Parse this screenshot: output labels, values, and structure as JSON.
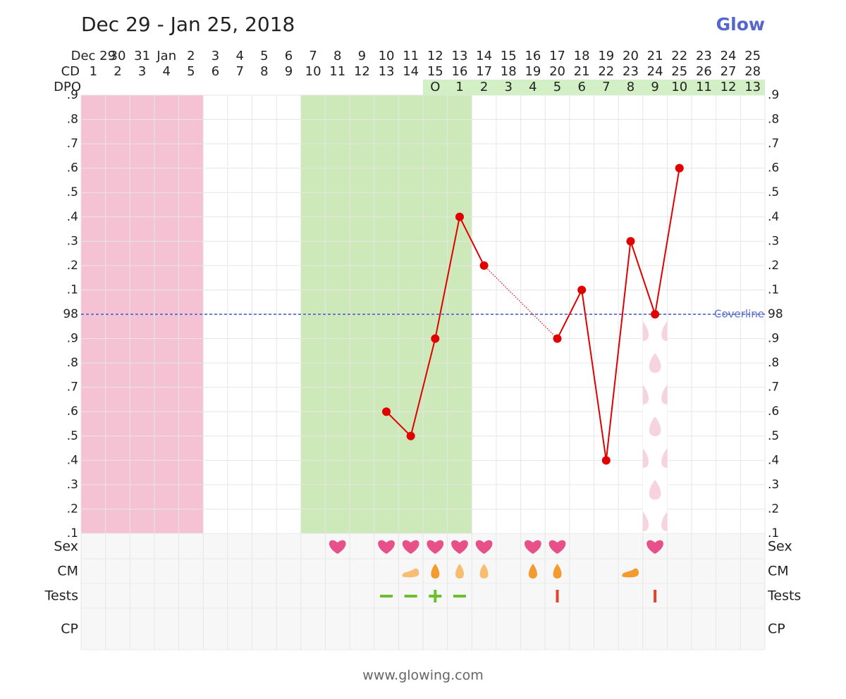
{
  "chart_data": {
    "type": "line",
    "title": "Dec 29 - Jan 25, 2018",
    "brand": "Glow",
    "footer": "www.glowing.com",
    "date_row_label": null,
    "dates": [
      "Dec 29",
      30,
      31,
      "Jan",
      2,
      3,
      4,
      5,
      6,
      7,
      8,
      9,
      10,
      11,
      12,
      13,
      14,
      15,
      16,
      17,
      18,
      19,
      20,
      21,
      22,
      23,
      24,
      25
    ],
    "highlighted_dates": [
      2,
      3,
      9,
      10,
      16,
      17,
      23,
      24
    ],
    "highlight_color": "#e00000",
    "cd_label": "CD",
    "categories": [
      1,
      2,
      3,
      4,
      5,
      6,
      7,
      8,
      9,
      10,
      11,
      12,
      13,
      14,
      15,
      16,
      17,
      18,
      19,
      20,
      21,
      22,
      23,
      24,
      25,
      26,
      27,
      28
    ],
    "dpo_label": "DPO",
    "dpo": [
      null,
      null,
      null,
      null,
      null,
      null,
      null,
      null,
      null,
      null,
      null,
      null,
      null,
      null,
      "O",
      1,
      2,
      3,
      4,
      5,
      6,
      7,
      8,
      9,
      10,
      11,
      12,
      13
    ],
    "dpo_color": "#d3efc6",
    "series": [
      {
        "name": "Temperature",
        "color": "#e00000",
        "values": [
          null,
          null,
          null,
          null,
          null,
          null,
          null,
          null,
          null,
          null,
          null,
          null,
          97.6,
          97.5,
          97.9,
          98.4,
          98.2,
          null,
          null,
          97.9,
          98.1,
          97.4,
          98.3,
          98.0,
          98.6,
          null,
          null,
          null
        ]
      }
    ],
    "connect_gaps": true,
    "ylim": [
      97.1,
      98.9
    ],
    "yticks": [
      {
        "value": 98.9,
        "label": ".9"
      },
      {
        "value": 98.8,
        "label": ".8"
      },
      {
        "value": 98.7,
        "label": ".7"
      },
      {
        "value": 98.6,
        "label": ".6"
      },
      {
        "value": 98.5,
        "label": ".5"
      },
      {
        "value": 98.4,
        "label": ".4"
      },
      {
        "value": 98.3,
        "label": ".3"
      },
      {
        "value": 98.2,
        "label": ".2"
      },
      {
        "value": 98.1,
        "label": ".1"
      },
      98,
      {
        "value": 97.9,
        "label": ".9"
      },
      {
        "value": 97.8,
        "label": ".8"
      },
      {
        "value": 97.7,
        "label": ".7"
      },
      {
        "value": 97.6,
        "label": ".6"
      },
      {
        "value": 97.5,
        "label": ".5"
      },
      {
        "value": 97.4,
        "label": ".4"
      },
      {
        "value": 97.3,
        "label": ".3"
      },
      {
        "value": 97.2,
        "label": ".2"
      },
      {
        "value": 97.1,
        "label": ".1"
      }
    ],
    "grid": true,
    "coverline": {
      "value": 98.0,
      "label": "Coverline",
      "color": "#3f57c9"
    },
    "period": {
      "start": 1,
      "end": 5,
      "color": "#f4c2d3"
    },
    "fertile_window": {
      "start": 10,
      "end": 16,
      "color": "#cde8b9"
    },
    "spotting_days": [
      24
    ],
    "spotting_color": "#f7d3de",
    "rows": [
      "Sex",
      "CM",
      "Tests",
      "CP"
    ],
    "sex_days": [
      11,
      13,
      14,
      15,
      16,
      17,
      19,
      20,
      24
    ],
    "sex_color": "#e8508a",
    "cm_drops": [
      {
        "day": 15,
        "color": "#f59a2f"
      },
      {
        "day": 16,
        "color": "#f8bd70"
      },
      {
        "day": 17,
        "color": "#f8bd70"
      },
      {
        "day": 19,
        "color": "#f59a2f"
      },
      {
        "day": 20,
        "color": "#f59a2f"
      }
    ],
    "cm_creamy": [
      {
        "day": 14,
        "color": "#f8bd70"
      },
      {
        "day": 23,
        "color": "#f59a2f"
      }
    ],
    "opk_negative_days": [
      13,
      14,
      16
    ],
    "opk_positive_days": [
      15
    ],
    "opk_color": "#6cbf2e",
    "hpt_days": [
      20,
      24
    ],
    "hpt_color": "#e0452a"
  }
}
